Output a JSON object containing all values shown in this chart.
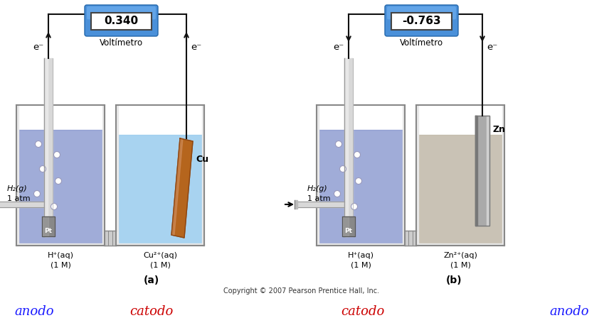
{
  "bg_color": "#ffffff",
  "fig_width": 8.49,
  "fig_height": 4.72,
  "dpi": 100,
  "copyright": "Copyright © 2007 Pearson Prentice Hall, Inc.",
  "label_a": "(a)",
  "label_b": "(b)",
  "voltmeter_a": "0.340",
  "voltmeter_b": "-0.763",
  "voltmeter_label": "Voltímetro",
  "h2g_label": "H₂(g)",
  "atm_label": "1 atm",
  "pt_label": "Pt",
  "cu_label": "Cu",
  "zn_label": "Zn",
  "cu_ion": "Cu²⁺(aq)",
  "zn_ion": "Zn²⁺(aq)",
  "h_ion": "H⁺(aq)",
  "one_m": "(1 M)",
  "electron": "e⁻",
  "anodo_color": "#1a1aff",
  "catodo_color": "#cc0000",
  "anodo_label": "anodo",
  "catodo_label": "catodo",
  "voltmeter_box_color": "#4a90d9",
  "voltmeter_box_dark": "#2266aa",
  "liquid_left_color": "#8090cc",
  "liquid_right_a_color": "#99ccee",
  "liquid_right_b_color": "#c0b8a8",
  "cu_color": "#b5651d",
  "cu_dark": "#8B4513",
  "cu_light": "#d4956a",
  "zn_color": "#aaaaaa",
  "zn_dark": "#777777",
  "zn_light": "#dddddd",
  "tube_color": "#dddddd",
  "tube_dark": "#999999",
  "salt_bridge_color": "#aaaaaa",
  "wall_color": "#888888",
  "wire_color": "#111111",
  "bubble_color": "#ffffff",
  "bubble_edge": "#9999bb"
}
